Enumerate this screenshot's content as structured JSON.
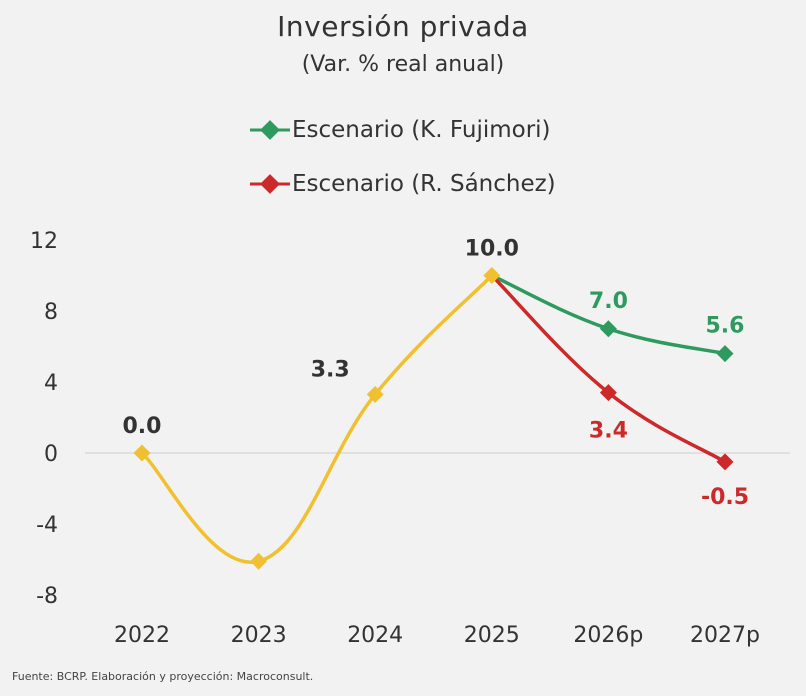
{
  "chart_data": {
    "type": "line",
    "title": "Inversión privada",
    "subtitle": "(Var. % real anual)",
    "categories": [
      "2022",
      "2023",
      "2024",
      "2025",
      "2026p",
      "2027p"
    ],
    "yticks": [
      "12",
      "8",
      "4",
      "0",
      "-4",
      "-8"
    ],
    "ylim": [
      -8,
      12
    ],
    "grid": "zero-line only",
    "legend_position": "top",
    "series": [
      {
        "name": "",
        "color": "#f0c030",
        "x": [
          "2022",
          "2023",
          "2024",
          "2025"
        ],
        "values": [
          0.0,
          -6.1,
          3.3,
          10.0
        ],
        "labels": [
          "0.0",
          "",
          "3.3",
          "10.0"
        ]
      },
      {
        "name": "Escenario (K. Fujimori)",
        "color": "#2e9a5e",
        "x": [
          "2025",
          "2026p",
          "2027p"
        ],
        "values": [
          10.0,
          7.0,
          5.6
        ],
        "labels": [
          "",
          "7.0",
          "5.6"
        ]
      },
      {
        "name": "Escenario (R. Sánchez)",
        "color": "#cc2a2a",
        "x": [
          "2025",
          "2026p",
          "2027p"
        ],
        "values": [
          10.0,
          3.4,
          -0.5
        ],
        "labels": [
          "",
          "3.4",
          "-0.5"
        ]
      }
    ],
    "source": "Fuente: BCRP. Elaboración y proyección: Macroconsult."
  }
}
